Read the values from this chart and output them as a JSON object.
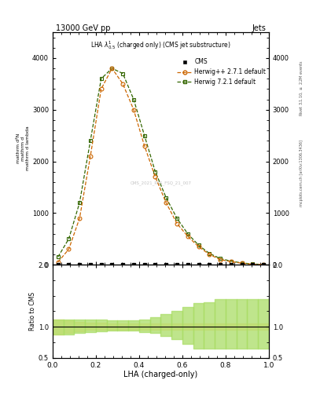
{
  "title_top": "13000 GeV pp",
  "title_right": "Jets",
  "plot_title": "LHA $\\lambda^{1}_{0.5}$ (charged only) (CMS jet substructure)",
  "xlabel": "LHA (charged-only)",
  "ylabel_main": "$\\frac{1}{\\mathrm{d}N}\\frac{\\mathrm{d}N}{\\mathrm{d}\\lambda}$",
  "ylabel_ratio": "Ratio to CMS",
  "right_label_top": "Rivet 3.1.10, $\\geq$ 2.2M events",
  "right_label_bottom": "mcplots.cern.ch [arXiv:1306.3436]",
  "watermark": "CMS_2021_PAS_FSQ_21_007",
  "cms_label": "CMS",
  "herwig_pp_label": "Herwig++ 2.7.1 default",
  "herwig7_label": "Herwig 7.2.1 default",
  "lha_bins": [
    0.0,
    0.05,
    0.1,
    0.15,
    0.2,
    0.25,
    0.3,
    0.35,
    0.4,
    0.45,
    0.5,
    0.55,
    0.6,
    0.65,
    0.7,
    0.75,
    0.8,
    0.85,
    0.9,
    0.95,
    1.0
  ],
  "cms_values": [
    0,
    0,
    0,
    0,
    0,
    0,
    0,
    0,
    0,
    0,
    0,
    0,
    0,
    0,
    0,
    0,
    0,
    0,
    0,
    0
  ],
  "herwig_pp_values": [
    50,
    300,
    900,
    2100,
    3400,
    3800,
    3500,
    3000,
    2300,
    1700,
    1200,
    800,
    550,
    350,
    200,
    100,
    60,
    30,
    10,
    5
  ],
  "herwig7_values": [
    150,
    500,
    1200,
    2400,
    3600,
    3800,
    3700,
    3200,
    2500,
    1800,
    1300,
    900,
    600,
    380,
    220,
    120,
    70,
    35,
    15,
    5
  ],
  "color_cms": "#000000",
  "color_herwig_pp": "#cc6600",
  "color_herwig7": "#336600",
  "color_herwig_pp_fill": "#ffdd99",
  "color_herwig7_fill": "#aadd66",
  "ylim_main": [
    0,
    4500
  ],
  "ylim_ratio": [
    0.5,
    2.0
  ],
  "xlim": [
    0.0,
    1.0
  ],
  "yticks_main": [
    0,
    1000,
    2000,
    3000,
    4000
  ],
  "yticks_ratio": [
    0.5,
    1.0,
    2.0
  ],
  "background_color": "#ffffff",
  "ratio_hpp_lo": [
    0.88,
    0.9,
    0.93,
    0.95,
    0.95,
    0.95,
    0.95,
    0.95,
    0.95,
    0.95,
    0.95,
    0.95,
    0.95,
    0.95,
    0.95,
    0.95,
    0.95,
    0.95,
    0.95,
    0.95
  ],
  "ratio_hpp_hi": [
    1.12,
    1.1,
    1.08,
    1.06,
    1.06,
    1.05,
    1.05,
    1.05,
    1.05,
    1.05,
    1.05,
    1.05,
    1.05,
    1.05,
    1.05,
    1.05,
    1.05,
    1.05,
    1.05,
    1.05
  ],
  "ratio_h7_lo": [
    0.88,
    0.88,
    0.9,
    0.92,
    0.93,
    0.94,
    0.94,
    0.94,
    0.92,
    0.9,
    0.85,
    0.8,
    0.72,
    0.65,
    0.65,
    0.65,
    0.65,
    0.65,
    0.65,
    0.65
  ],
  "ratio_h7_hi": [
    1.12,
    1.12,
    1.12,
    1.12,
    1.12,
    1.1,
    1.1,
    1.1,
    1.12,
    1.15,
    1.2,
    1.25,
    1.32,
    1.38,
    1.4,
    1.45,
    1.45,
    1.45,
    1.45,
    1.45
  ]
}
